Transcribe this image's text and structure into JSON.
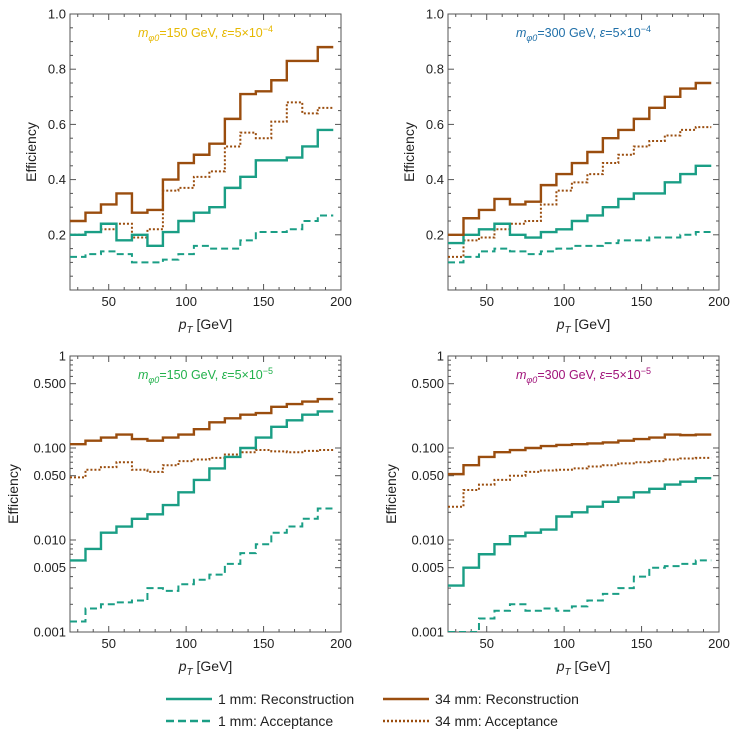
{
  "colors": {
    "reco_1mm": "#1a9e85",
    "acc_1mm": "#1a9e85",
    "reco_34mm": "#9a4d0e",
    "acc_34mm": "#9a4d0e",
    "title_150_5e4": "#e6b800",
    "title_300_5e4": "#1f6fa8",
    "title_150_5e5": "#22b14c",
    "title_300_5e5": "#a0127a"
  },
  "legend": [
    {
      "label": "1 mm: Reconstruction",
      "color": "#1a9e85",
      "dash": ""
    },
    {
      "label": "34 mm: Reconstruction",
      "color": "#9a4d0e",
      "dash": ""
    },
    {
      "label": "1 mm: Acceptance",
      "color": "#1a9e85",
      "dash": "8,4"
    },
    {
      "label": "34 mm: Acceptance",
      "color": "#9a4d0e",
      "dash": "2,2"
    }
  ],
  "chart_data": [
    {
      "type": "line",
      "title": "m_φ0=150 GeV, ε=5×10^-4",
      "title_parts": {
        "m": "m",
        "sub": "φ0",
        "rest": "=150 GeV, ",
        "eps": "ε",
        "pre": "=5×10",
        "exp": "−4"
      },
      "title_color": "#e6b800",
      "xlabel": "p_T [GeV]",
      "ylabel": "Efficiency",
      "scale": "linear",
      "xlim": [
        25,
        200
      ],
      "ylim": [
        0,
        1.0
      ],
      "xticks": [
        50,
        100,
        150,
        200
      ],
      "yticks": [
        0.2,
        0.4,
        0.6,
        0.8,
        1.0
      ],
      "ytick_labels": [
        "0.2",
        "0.4",
        "0.6",
        "0.8",
        "1.0"
      ],
      "bin_edges": [
        25,
        35,
        45,
        55,
        65,
        75,
        85,
        95,
        105,
        115,
        125,
        135,
        145,
        155,
        165,
        175,
        185,
        195
      ],
      "series": [
        {
          "name": "1 mm: Reconstruction",
          "values": [
            0.2,
            0.21,
            0.24,
            0.18,
            0.2,
            0.16,
            0.21,
            0.25,
            0.28,
            0.3,
            0.37,
            0.41,
            0.47,
            0.47,
            0.48,
            0.52,
            0.58
          ]
        },
        {
          "name": "1 mm: Acceptance",
          "values": [
            0.12,
            0.13,
            0.14,
            0.13,
            0.1,
            0.1,
            0.11,
            0.13,
            0.16,
            0.15,
            0.15,
            0.18,
            0.21,
            0.21,
            0.22,
            0.25,
            0.27
          ]
        },
        {
          "name": "34 mm: Reconstruction",
          "values": [
            0.25,
            0.28,
            0.31,
            0.35,
            0.28,
            0.29,
            0.4,
            0.46,
            0.49,
            0.53,
            0.62,
            0.71,
            0.72,
            0.76,
            0.83,
            0.83,
            0.88
          ]
        },
        {
          "name": "34 mm: Acceptance",
          "values": [
            0.2,
            0.21,
            0.22,
            0.24,
            0.19,
            0.22,
            0.36,
            0.37,
            0.41,
            0.43,
            0.52,
            0.57,
            0.55,
            0.61,
            0.68,
            0.64,
            0.66
          ]
        }
      ]
    },
    {
      "type": "line",
      "title": "m_φ0=300 GeV, ε=5×10^-4",
      "title_parts": {
        "m": "m",
        "sub": "φ0",
        "rest": "=300 GeV, ",
        "eps": "ε",
        "pre": "=5×10",
        "exp": "−4"
      },
      "title_color": "#1f6fa8",
      "xlabel": "p_T [GeV]",
      "ylabel": "Efficiency",
      "scale": "linear",
      "xlim": [
        25,
        200
      ],
      "ylim": [
        0,
        1.0
      ],
      "xticks": [
        50,
        100,
        150,
        200
      ],
      "yticks": [
        0.2,
        0.4,
        0.6,
        0.8,
        1.0
      ],
      "ytick_labels": [
        "0.2",
        "0.4",
        "0.6",
        "0.8",
        "1.0"
      ],
      "bin_edges": [
        25,
        35,
        45,
        55,
        65,
        75,
        85,
        95,
        105,
        115,
        125,
        135,
        145,
        155,
        165,
        175,
        185,
        195
      ],
      "series": [
        {
          "name": "1 mm: Reconstruction",
          "values": [
            0.17,
            0.2,
            0.22,
            0.24,
            0.2,
            0.19,
            0.21,
            0.22,
            0.25,
            0.27,
            0.3,
            0.33,
            0.35,
            0.35,
            0.39,
            0.42,
            0.45
          ]
        },
        {
          "name": "1 mm: Acceptance",
          "values": [
            0.1,
            0.12,
            0.14,
            0.15,
            0.14,
            0.13,
            0.14,
            0.15,
            0.16,
            0.16,
            0.17,
            0.18,
            0.18,
            0.19,
            0.19,
            0.2,
            0.21
          ]
        },
        {
          "name": "34 mm: Reconstruction",
          "values": [
            0.2,
            0.26,
            0.29,
            0.33,
            0.31,
            0.32,
            0.38,
            0.42,
            0.46,
            0.5,
            0.55,
            0.58,
            0.62,
            0.66,
            0.7,
            0.73,
            0.75
          ]
        },
        {
          "name": "34 mm: Acceptance",
          "values": [
            0.12,
            0.18,
            0.19,
            0.22,
            0.24,
            0.25,
            0.31,
            0.36,
            0.39,
            0.42,
            0.46,
            0.49,
            0.52,
            0.54,
            0.56,
            0.58,
            0.59
          ]
        }
      ]
    },
    {
      "type": "line",
      "title": "m_φ0=150 GeV, ε=5×10^-5",
      "title_parts": {
        "m": "m",
        "sub": "φ0",
        "rest": "=150 GeV, ",
        "eps": "ε",
        "pre": "=5×10",
        "exp": "−5"
      },
      "title_color": "#22b14c",
      "xlabel": "p_T [GeV]",
      "ylabel": "Efficiency",
      "scale": "log",
      "xlim": [
        25,
        200
      ],
      "ylim": [
        0.001,
        1
      ],
      "xticks": [
        50,
        100,
        150,
        200
      ],
      "yticks": [
        0.001,
        0.005,
        0.01,
        0.05,
        0.1,
        0.5,
        1
      ],
      "ytick_labels": [
        "0.001",
        "0.005",
        "0.010",
        "0.050",
        "0.100",
        "0.500",
        "1"
      ],
      "bin_edges": [
        25,
        35,
        45,
        55,
        65,
        75,
        85,
        95,
        105,
        115,
        125,
        135,
        145,
        155,
        165,
        175,
        185,
        195
      ],
      "series": [
        {
          "name": "1 mm: Reconstruction",
          "values": [
            0.006,
            0.008,
            0.012,
            0.014,
            0.017,
            0.019,
            0.024,
            0.033,
            0.045,
            0.06,
            0.08,
            0.1,
            0.13,
            0.17,
            0.2,
            0.23,
            0.25
          ]
        },
        {
          "name": "1 mm: Acceptance",
          "values": [
            0.0013,
            0.0018,
            0.002,
            0.0021,
            0.0022,
            0.003,
            0.0028,
            0.0033,
            0.0037,
            0.0042,
            0.0055,
            0.0072,
            0.009,
            0.012,
            0.014,
            0.017,
            0.022
          ]
        },
        {
          "name": "34 mm: Reconstruction",
          "values": [
            0.11,
            0.12,
            0.13,
            0.14,
            0.125,
            0.12,
            0.13,
            0.14,
            0.16,
            0.19,
            0.21,
            0.23,
            0.24,
            0.28,
            0.3,
            0.32,
            0.34
          ]
        },
        {
          "name": "34 mm: Acceptance",
          "values": [
            0.048,
            0.058,
            0.062,
            0.07,
            0.058,
            0.055,
            0.065,
            0.072,
            0.075,
            0.078,
            0.085,
            0.09,
            0.095,
            0.092,
            0.09,
            0.093,
            0.095
          ]
        }
      ]
    },
    {
      "type": "line",
      "title": "m_φ0=300 GeV, ε=5×10^-5",
      "title_parts": {
        "m": "m",
        "sub": "φ0",
        "rest": "=300 GeV, ",
        "eps": "ε",
        "pre": "=5×10",
        "exp": "−5"
      },
      "title_color": "#a0127a",
      "xlabel": "p_T [GeV]",
      "ylabel": "Efficiency",
      "scale": "log",
      "xlim": [
        25,
        200
      ],
      "ylim": [
        0.001,
        1
      ],
      "xticks": [
        50,
        100,
        150,
        200
      ],
      "yticks": [
        0.001,
        0.005,
        0.01,
        0.05,
        0.1,
        0.5,
        1
      ],
      "ytick_labels": [
        "0.001",
        "0.005",
        "0.010",
        "0.050",
        "0.100",
        "0.500",
        "1"
      ],
      "bin_edges": [
        25,
        35,
        45,
        55,
        65,
        75,
        85,
        95,
        105,
        115,
        125,
        135,
        145,
        155,
        165,
        175,
        185,
        195
      ],
      "series": [
        {
          "name": "1 mm: Reconstruction",
          "values": [
            0.0032,
            0.005,
            0.007,
            0.009,
            0.011,
            0.012,
            0.013,
            0.018,
            0.02,
            0.023,
            0.026,
            0.029,
            0.033,
            0.036,
            0.04,
            0.043,
            0.047
          ]
        },
        {
          "name": "1 mm: Acceptance",
          "values": [
            0.0008,
            0.001,
            0.0014,
            0.0017,
            0.002,
            0.0017,
            0.0018,
            0.0017,
            0.0019,
            0.0022,
            0.0026,
            0.003,
            0.004,
            0.005,
            0.0052,
            0.0055,
            0.006
          ]
        },
        {
          "name": "34 mm: Reconstruction",
          "values": [
            0.052,
            0.065,
            0.08,
            0.09,
            0.095,
            0.1,
            0.105,
            0.108,
            0.11,
            0.112,
            0.115,
            0.12,
            0.125,
            0.13,
            0.14,
            0.138,
            0.14
          ]
        },
        {
          "name": "34 mm: Acceptance",
          "values": [
            0.023,
            0.035,
            0.04,
            0.045,
            0.05,
            0.055,
            0.057,
            0.058,
            0.06,
            0.063,
            0.065,
            0.068,
            0.07,
            0.072,
            0.075,
            0.077,
            0.078
          ]
        }
      ]
    }
  ]
}
